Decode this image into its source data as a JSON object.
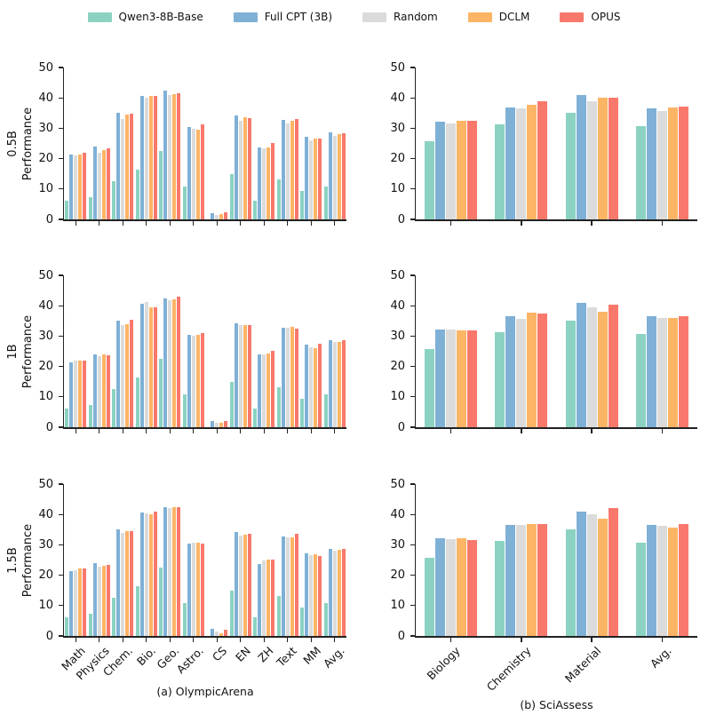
{
  "legend": {
    "items": [
      {
        "label": "Qwen3-8B-Base",
        "color": "#8BD2C2"
      },
      {
        "label": "Full CPT (3B)",
        "color": "#7FB0D6"
      },
      {
        "label": "Random",
        "color": "#DBDBDB"
      },
      {
        "label": "DCLM",
        "color": "#FCB465"
      },
      {
        "label": "OPUS",
        "color": "#F8796C"
      }
    ]
  },
  "captions": {
    "left": "(a) OlympicArena",
    "right": "(b) SciAssess"
  },
  "chart_data": [
    {
      "type": "bar",
      "panel": "OlympicArena",
      "row_label": "0.5B",
      "ylabel": "Performance",
      "ylim": [
        0,
        50
      ],
      "yticks": [
        0,
        10,
        20,
        30,
        40,
        50
      ],
      "grid": false,
      "legend_position": "top",
      "categories": [
        "Math",
        "Physics",
        "Chem.",
        "Bio.",
        "Geo.",
        "Astro.",
        "CS",
        "EN",
        "ZH",
        "Text",
        "MM",
        "Avg."
      ],
      "series": [
        {
          "name": "Qwen3-8B-Base",
          "values": [
            6.1,
            7.2,
            12.5,
            16.3,
            22.5,
            10.8,
            0.0,
            14.8,
            6.2,
            13.3,
            9.4,
            10.8
          ]
        },
        {
          "name": "Full CPT (3B)",
          "values": [
            21.5,
            24.0,
            35.1,
            40.7,
            42.5,
            30.5,
            2.2,
            34.3,
            23.8,
            32.9,
            27.2,
            28.6
          ]
        },
        {
          "name": "Random",
          "values": [
            21.2,
            22.0,
            33.0,
            40.2,
            41.0,
            29.9,
            1.5,
            32.6,
            23.3,
            31.7,
            26.0,
            27.5
          ]
        },
        {
          "name": "DCLM",
          "values": [
            21.4,
            22.9,
            34.5,
            40.8,
            41.3,
            29.6,
            1.8,
            33.6,
            23.7,
            32.4,
            26.7,
            28.1
          ]
        },
        {
          "name": "OPUS",
          "values": [
            21.9,
            23.3,
            34.8,
            40.8,
            41.4,
            31.2,
            2.4,
            33.3,
            25.3,
            33.2,
            26.7,
            28.5
          ]
        }
      ]
    },
    {
      "type": "bar",
      "panel": "SciAssess",
      "row_label": "0.5B",
      "ylabel": "Performance",
      "ylim": [
        0,
        50
      ],
      "yticks": [
        0,
        10,
        20,
        30,
        40,
        50
      ],
      "grid": false,
      "legend_position": "top",
      "categories": [
        "Biology",
        "Chemistry",
        "Material",
        "Avg."
      ],
      "series": [
        {
          "name": "Qwen3-8B-Base",
          "values": [
            25.8,
            31.3,
            35.0,
            30.7
          ]
        },
        {
          "name": "Full CPT (3B)",
          "values": [
            32.2,
            36.8,
            41.0,
            36.7
          ]
        },
        {
          "name": "Random",
          "values": [
            31.5,
            36.5,
            38.9,
            35.7
          ]
        },
        {
          "name": "DCLM",
          "values": [
            32.4,
            37.8,
            40.2,
            36.9
          ]
        },
        {
          "name": "OPUS",
          "values": [
            32.4,
            39.0,
            40.0,
            37.2
          ]
        }
      ]
    },
    {
      "type": "bar",
      "panel": "OlympicArena",
      "row_label": "1B",
      "ylabel": "Performance",
      "ylim": [
        0,
        50
      ],
      "yticks": [
        0,
        10,
        20,
        30,
        40,
        50
      ],
      "grid": false,
      "legend_position": "top",
      "categories": [
        "Math",
        "Physics",
        "Chem.",
        "Bio.",
        "Geo.",
        "Astro.",
        "CS",
        "EN",
        "ZH",
        "Text",
        "MM",
        "Avg."
      ],
      "series": [
        {
          "name": "Qwen3-8B-Base",
          "values": [
            6.1,
            7.2,
            12.5,
            16.3,
            22.5,
            10.8,
            0.0,
            14.8,
            6.2,
            13.3,
            9.4,
            10.8
          ]
        },
        {
          "name": "Full CPT (3B)",
          "values": [
            21.5,
            24.0,
            35.2,
            40.7,
            42.5,
            30.5,
            2.2,
            34.3,
            23.9,
            32.8,
            27.3,
            28.6
          ]
        },
        {
          "name": "Random",
          "values": [
            21.8,
            23.3,
            33.6,
            41.2,
            41.8,
            30.1,
            1.5,
            33.5,
            24.0,
            32.8,
            26.3,
            28.2
          ]
        },
        {
          "name": "DCLM",
          "values": [
            21.8,
            24.0,
            34.0,
            39.4,
            42.0,
            30.4,
            1.6,
            33.5,
            24.2,
            33.2,
            26.1,
            28.2
          ]
        },
        {
          "name": "OPUS",
          "values": [
            21.8,
            23.6,
            35.5,
            39.6,
            43.0,
            31.0,
            2.0,
            33.5,
            25.3,
            32.6,
            27.6,
            28.7
          ]
        }
      ]
    },
    {
      "type": "bar",
      "panel": "SciAssess",
      "row_label": "1B",
      "ylabel": "Performance",
      "ylim": [
        0,
        50
      ],
      "yticks": [
        0,
        10,
        20,
        30,
        40,
        50
      ],
      "grid": false,
      "legend_position": "top",
      "categories": [
        "Biology",
        "Chemistry",
        "Material",
        "Avg."
      ],
      "series": [
        {
          "name": "Qwen3-8B-Base",
          "values": [
            25.8,
            31.3,
            35.0,
            30.7
          ]
        },
        {
          "name": "Full CPT (3B)",
          "values": [
            32.2,
            36.7,
            41.0,
            36.7
          ]
        },
        {
          "name": "Random",
          "values": [
            32.2,
            35.8,
            39.4,
            35.9
          ]
        },
        {
          "name": "DCLM",
          "values": [
            32.0,
            37.8,
            37.9,
            36.0
          ]
        },
        {
          "name": "OPUS",
          "values": [
            31.8,
            37.3,
            40.3,
            36.5
          ]
        }
      ]
    },
    {
      "type": "bar",
      "panel": "OlympicArena",
      "row_label": "1.5B",
      "ylabel": "Performance",
      "ylim": [
        0,
        50
      ],
      "yticks": [
        0,
        10,
        20,
        30,
        40,
        50
      ],
      "grid": false,
      "legend_position": "top",
      "categories": [
        "Math",
        "Physics",
        "Chem.",
        "Bio.",
        "Geo.",
        "Astro.",
        "CS",
        "EN",
        "ZH",
        "Text",
        "MM",
        "Avg."
      ],
      "series": [
        {
          "name": "Qwen3-8B-Base",
          "values": [
            6.1,
            7.2,
            12.5,
            16.3,
            22.5,
            10.8,
            0.0,
            14.8,
            6.2,
            13.3,
            9.4,
            10.8
          ]
        },
        {
          "name": "Full CPT (3B)",
          "values": [
            21.5,
            24.0,
            35.1,
            40.7,
            42.5,
            30.4,
            2.3,
            34.3,
            23.8,
            32.8,
            27.2,
            28.6
          ]
        },
        {
          "name": "Random",
          "values": [
            21.7,
            22.8,
            34.0,
            40.3,
            42.1,
            30.7,
            1.4,
            33.2,
            24.8,
            32.5,
            26.6,
            28.2
          ]
        },
        {
          "name": "DCLM",
          "values": [
            22.2,
            23.0,
            34.6,
            40.1,
            42.3,
            30.7,
            0.9,
            33.4,
            25.2,
            32.6,
            27.0,
            28.3
          ]
        },
        {
          "name": "OPUS",
          "values": [
            22.2,
            23.3,
            34.6,
            41.0,
            42.4,
            30.3,
            2.0,
            33.5,
            25.3,
            33.6,
            26.4,
            28.6
          ]
        }
      ]
    },
    {
      "type": "bar",
      "panel": "SciAssess",
      "row_label": "1.5B",
      "ylabel": "Performance",
      "ylim": [
        0,
        50
      ],
      "yticks": [
        0,
        10,
        20,
        30,
        40,
        50
      ],
      "grid": false,
      "legend_position": "top",
      "categories": [
        "Biology",
        "Chemistry",
        "Material",
        "Avg."
      ],
      "series": [
        {
          "name": "Qwen3-8B-Base",
          "values": [
            25.8,
            31.3,
            35.0,
            30.7
          ]
        },
        {
          "name": "Full CPT (3B)",
          "values": [
            32.3,
            36.7,
            41.0,
            36.7
          ]
        },
        {
          "name": "Random",
          "values": [
            31.8,
            36.5,
            40.1,
            36.2
          ]
        },
        {
          "name": "DCLM",
          "values": [
            32.2,
            36.8,
            38.5,
            35.8
          ]
        },
        {
          "name": "OPUS",
          "values": [
            31.7,
            36.8,
            42.2,
            36.9
          ]
        }
      ]
    }
  ]
}
